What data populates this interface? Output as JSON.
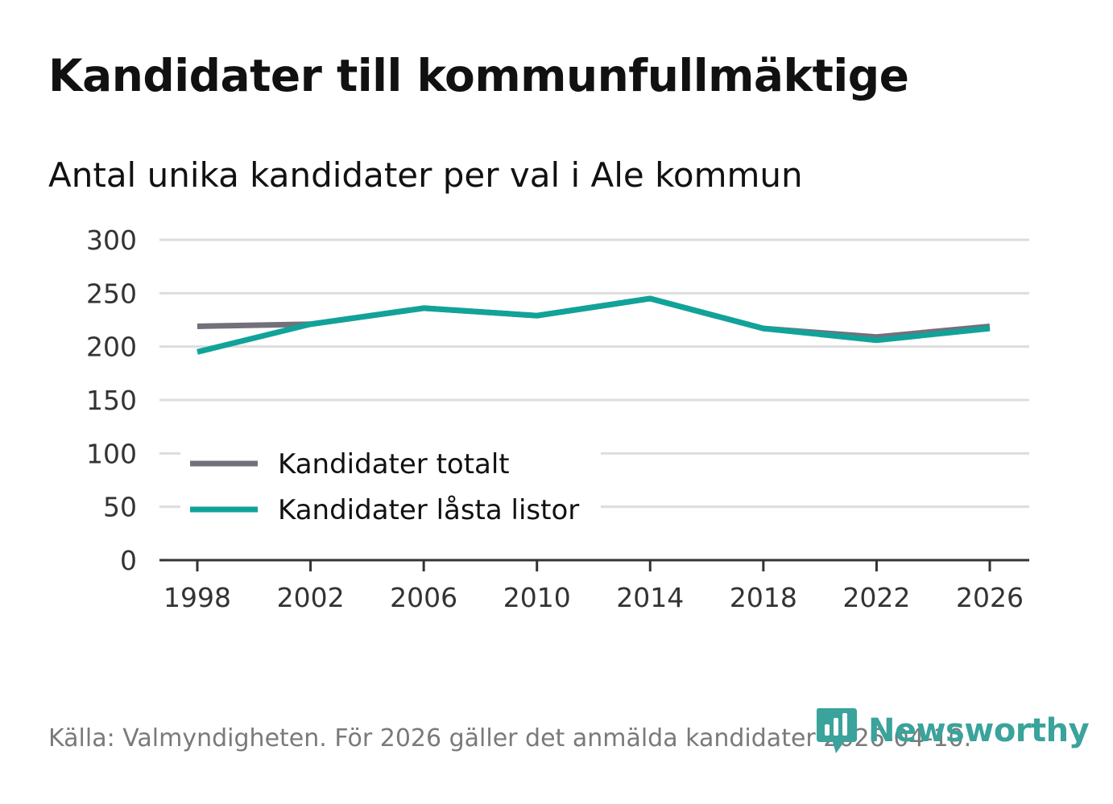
{
  "title": "Kandidater till kommunfullmäktige",
  "subtitle": "Antal unika kandidater per val i Ale kommun",
  "source": "Källa: Valmyndigheten. För 2026 gäller det anmälda kandidater 2026-04-10.",
  "brand": {
    "name": "Newsworthy",
    "color": "#3aa39b",
    "icon": "bar-chart-logo-icon"
  },
  "colors": {
    "grid": "#dddddd",
    "axis": "#333333",
    "text": "#333333"
  },
  "chart_data": {
    "type": "line",
    "title": "Kandidater till kommunfullmäktige",
    "subtitle": "Antal unika kandidater per val i Ale kommun",
    "xlabel": "",
    "ylabel": "",
    "x": [
      1998,
      2002,
      2006,
      2010,
      2014,
      2018,
      2022,
      2026
    ],
    "x_tick_labels": [
      "1998",
      "2002",
      "2006",
      "2010",
      "2014",
      "2018",
      "2022",
      "2026"
    ],
    "y_ticks": [
      0,
      50,
      100,
      150,
      200,
      250,
      300
    ],
    "y_tick_labels": [
      "0",
      "50",
      "100",
      "150",
      "200",
      "250",
      "300"
    ],
    "ylim": [
      0,
      300
    ],
    "grid": true,
    "legend_position": "bottom-left",
    "series": [
      {
        "name": "Kandidater totalt",
        "color": "#74707a",
        "values": [
          219,
          221,
          236,
          229,
          245,
          217,
          209,
          219
        ]
      },
      {
        "name": "Kandidater låsta listor",
        "color": "#11a399",
        "values": [
          195,
          221,
          236,
          229,
          245,
          217,
          206,
          217
        ]
      }
    ]
  }
}
